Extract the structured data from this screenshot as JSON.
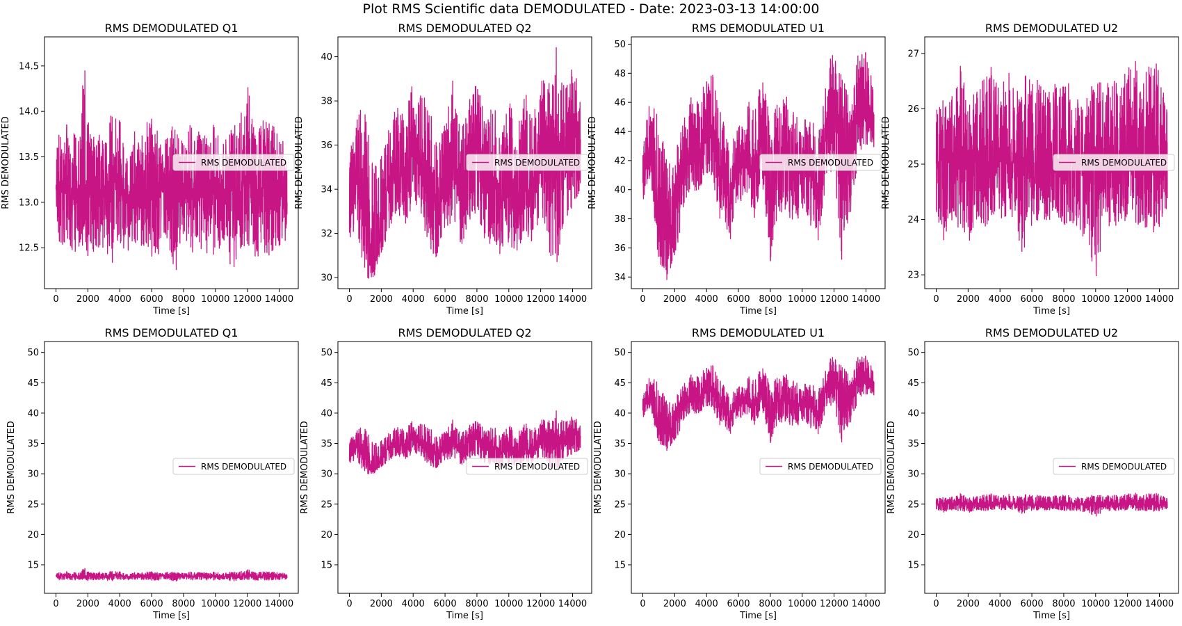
{
  "figure": {
    "suptitle": "Plot RMS Scientific data DEMODULATED - Date: 2023-03-13 14:00:00",
    "line_color": "#c71585"
  },
  "chart_data": [
    {
      "type": "line",
      "row": 0,
      "title": "RMS DEMODULATED Q1",
      "xlabel": "Time [s]",
      "ylabel": "RMS DEMODULATED",
      "legend": "RMS DEMODULATED",
      "legend_loc": "center-right",
      "xlim": [
        -720,
        15200
      ],
      "ylim": [
        12.05,
        14.82
      ],
      "xticks": [
        0,
        2000,
        4000,
        6000,
        8000,
        10000,
        12000,
        14000
      ],
      "yticks": [
        12.5,
        13.0,
        13.5,
        14.0,
        14.5
      ],
      "ytick_labels": [
        "12.5",
        "13.0",
        "13.5",
        "14.0",
        "14.5"
      ],
      "x": [
        0,
        500,
        1000,
        1500,
        1800,
        2000,
        2500,
        3000,
        3500,
        4000,
        4500,
        5000,
        5500,
        6000,
        6500,
        7000,
        7500,
        8000,
        8500,
        9000,
        9500,
        10000,
        10500,
        11000,
        11500,
        12000,
        12500,
        13000,
        13500,
        14000,
        14500
      ],
      "y": [
        13.1,
        13.2,
        13.0,
        13.2,
        13.3,
        13.1,
        13.2,
        13.1,
        13.3,
        13.2,
        13.1,
        13.2,
        13.1,
        13.2,
        13.1,
        13.2,
        13.0,
        13.2,
        13.1,
        13.1,
        13.2,
        13.1,
        13.0,
        13.2,
        13.1,
        13.2,
        13.1,
        13.1,
        13.2,
        13.1,
        13.0
      ],
      "y_min_band": [
        12.6,
        12.5,
        12.4,
        12.5,
        12.5,
        12.4,
        12.4,
        12.5,
        12.3,
        12.5,
        12.4,
        12.5,
        12.5,
        12.4,
        12.4,
        12.5,
        12.2,
        12.5,
        12.4,
        12.5,
        12.4,
        12.4,
        12.5,
        12.2,
        12.4,
        12.5,
        12.4,
        12.4,
        12.4,
        12.5,
        12.6
      ],
      "y_max_band": [
        13.6,
        14.0,
        13.8,
        13.7,
        14.7,
        13.9,
        13.7,
        13.8,
        14.0,
        13.9,
        13.8,
        13.9,
        13.8,
        14.0,
        13.7,
        13.8,
        13.9,
        13.7,
        13.9,
        13.8,
        13.8,
        13.9,
        13.7,
        13.8,
        14.0,
        14.3,
        13.9,
        13.9,
        13.9,
        13.8,
        13.6
      ]
    },
    {
      "type": "line",
      "row": 0,
      "title": "RMS DEMODULATED Q2",
      "xlabel": "Time [s]",
      "ylabel": "RMS DEMODULATED",
      "legend": "RMS DEMODULATED",
      "legend_loc": "center-right",
      "xlim": [
        -720,
        15200
      ],
      "ylim": [
        29.5,
        40.9
      ],
      "xticks": [
        0,
        2000,
        4000,
        6000,
        8000,
        10000,
        12000,
        14000
      ],
      "yticks": [
        30,
        32,
        34,
        36,
        38,
        40
      ],
      "ytick_labels": [
        "30",
        "32",
        "34",
        "36",
        "38",
        "40"
      ],
      "x": [
        0,
        500,
        1000,
        1500,
        2000,
        2500,
        3000,
        3500,
        4000,
        4500,
        5000,
        5500,
        6000,
        6500,
        7000,
        7500,
        8000,
        8500,
        9000,
        9500,
        10000,
        10500,
        11000,
        11500,
        12000,
        12500,
        13000,
        13500,
        14000,
        14500
      ],
      "y": [
        33.5,
        35.0,
        32.5,
        31.0,
        32.5,
        34.5,
        35.0,
        34.5,
        36.0,
        35.0,
        34.5,
        33.0,
        34.0,
        35.5,
        33.5,
        35.5,
        36.0,
        34.0,
        34.5,
        33.5,
        34.0,
        33.5,
        35.0,
        33.5,
        36.0,
        36.5,
        34.5,
        35.5,
        36.5,
        36.0
      ],
      "y_min_band": [
        31.5,
        32.0,
        30.0,
        29.8,
        31.0,
        32.0,
        33.0,
        32.0,
        33.5,
        32.5,
        31.5,
        30.5,
        32.0,
        32.5,
        31.0,
        32.5,
        33.0,
        31.5,
        31.5,
        31.0,
        31.5,
        31.0,
        32.0,
        31.5,
        33.0,
        31.0,
        30.5,
        32.5,
        33.0,
        34.0
      ],
      "y_max_band": [
        35.5,
        37.5,
        38.0,
        35.0,
        35.5,
        37.0,
        38.0,
        37.5,
        39.0,
        38.5,
        38.0,
        36.0,
        37.0,
        39.0,
        37.0,
        38.0,
        39.0,
        37.5,
        38.0,
        37.0,
        38.5,
        36.5,
        38.5,
        37.5,
        39.0,
        39.0,
        40.5,
        38.5,
        40.0,
        38.0
      ]
    },
    {
      "type": "line",
      "row": 0,
      "title": "RMS DEMODULATED U1",
      "xlabel": "Time [s]",
      "ylabel": "RMS DEMODULATED",
      "legend": "RMS DEMODULATED",
      "legend_loc": "center-right",
      "xlim": [
        -720,
        15200
      ],
      "ylim": [
        33.2,
        50.5
      ],
      "xticks": [
        0,
        2000,
        4000,
        6000,
        8000,
        10000,
        12000,
        14000
      ],
      "yticks": [
        34,
        36,
        38,
        40,
        42,
        44,
        46,
        48,
        50
      ],
      "ytick_labels": [
        "34",
        "36",
        "38",
        "40",
        "42",
        "44",
        "46",
        "48",
        "50"
      ],
      "x": [
        0,
        500,
        1000,
        1500,
        2000,
        2500,
        3000,
        3500,
        4000,
        4500,
        5000,
        5500,
        6000,
        6500,
        7000,
        7500,
        8000,
        8500,
        9000,
        9500,
        10000,
        10500,
        11000,
        11500,
        12000,
        12500,
        13000,
        13500,
        14000,
        14500
      ],
      "y": [
        41.0,
        43.0,
        39.0,
        36.5,
        38.0,
        41.0,
        43.0,
        42.0,
        44.0,
        43.0,
        41.0,
        39.0,
        42.0,
        42.5,
        41.0,
        44.0,
        40.0,
        42.0,
        42.0,
        41.0,
        42.0,
        41.0,
        40.0,
        44.0,
        45.0,
        43.0,
        41.0,
        45.0,
        46.0,
        44.0
      ],
      "y_min_band": [
        39.0,
        40.0,
        35.0,
        33.5,
        35.0,
        38.0,
        40.0,
        39.0,
        41.0,
        40.0,
        37.0,
        36.5,
        39.0,
        39.5,
        38.0,
        40.0,
        35.0,
        38.5,
        38.0,
        37.5,
        38.5,
        37.5,
        36.5,
        40.5,
        41.5,
        34.5,
        37.5,
        42.0,
        43.0,
        42.5
      ],
      "y_max_band": [
        43.5,
        46.5,
        45.0,
        42.0,
        42.5,
        44.5,
        46.5,
        46.0,
        48.5,
        48.5,
        45.5,
        43.0,
        45.0,
        46.5,
        45.5,
        48.0,
        45.0,
        46.0,
        46.5,
        45.5,
        46.0,
        45.0,
        44.0,
        48.5,
        49.5,
        49.5,
        46.0,
        49.5,
        49.5,
        47.5
      ]
    },
    {
      "type": "line",
      "row": 0,
      "title": "RMS DEMODULATED U2",
      "xlabel": "Time [s]",
      "ylabel": "RMS DEMODULATED",
      "legend": "RMS DEMODULATED",
      "legend_loc": "center-right",
      "xlim": [
        -720,
        15200
      ],
      "ylim": [
        22.75,
        27.3
      ],
      "xticks": [
        0,
        2000,
        4000,
        6000,
        8000,
        10000,
        12000,
        14000
      ],
      "yticks": [
        23,
        24,
        25,
        26,
        27
      ],
      "ytick_labels": [
        "23",
        "24",
        "25",
        "26",
        "27"
      ],
      "x": [
        0,
        500,
        1000,
        1500,
        2000,
        2500,
        3000,
        3500,
        4000,
        4500,
        5000,
        5500,
        6000,
        6500,
        7000,
        7500,
        8000,
        8500,
        9000,
        9500,
        10000,
        10500,
        11000,
        11500,
        12000,
        12500,
        13000,
        13500,
        14000,
        14500
      ],
      "y": [
        25.0,
        25.1,
        25.0,
        25.2,
        25.0,
        25.1,
        25.0,
        24.9,
        25.1,
        25.0,
        25.1,
        25.0,
        24.9,
        25.1,
        25.0,
        25.1,
        25.0,
        25.1,
        25.0,
        25.0,
        25.1,
        25.0,
        24.9,
        25.1,
        25.0,
        25.1,
        25.0,
        25.1,
        25.0,
        25.0
      ],
      "y_min_band": [
        23.9,
        23.6,
        24.0,
        23.8,
        23.5,
        24.0,
        23.8,
        24.0,
        23.8,
        24.1,
        23.9,
        23.2,
        23.9,
        24.0,
        23.8,
        24.1,
        23.9,
        23.9,
        23.8,
        23.5,
        22.9,
        23.8,
        23.9,
        23.8,
        24.0,
        23.8,
        23.9,
        23.7,
        23.6,
        24.0
      ],
      "y_max_band": [
        26.0,
        26.2,
        26.5,
        26.8,
        26.4,
        26.7,
        26.6,
        26.8,
        26.5,
        26.7,
        26.4,
        26.7,
        26.5,
        26.6,
        26.3,
        26.5,
        26.6,
        26.4,
        26.5,
        26.2,
        26.6,
        26.5,
        26.6,
        26.4,
        26.8,
        27.0,
        26.6,
        26.9,
        26.8,
        26.3
      ]
    },
    {
      "type": "line",
      "row": 1,
      "title": "RMS DEMODULATED Q1",
      "xlabel": "Time [s]",
      "ylabel": "RMS DEMODULATED",
      "legend": "RMS DEMODULATED",
      "legend_loc": "center-right",
      "xlim": [
        -720,
        15200
      ],
      "ylim": [
        10.3,
        51.8
      ],
      "xticks": [
        0,
        2000,
        4000,
        6000,
        8000,
        10000,
        12000,
        14000
      ],
      "yticks": [
        15,
        20,
        25,
        30,
        35,
        40,
        45,
        50
      ],
      "ytick_labels": [
        "15",
        "20",
        "25",
        "30",
        "35",
        "40",
        "45",
        "50"
      ],
      "series_ref": 0
    },
    {
      "type": "line",
      "row": 1,
      "title": "RMS DEMODULATED Q2",
      "xlabel": "Time [s]",
      "ylabel": "RMS DEMODULATED",
      "legend": "RMS DEMODULATED",
      "legend_loc": "lower-right",
      "xlim": [
        -720,
        15200
      ],
      "ylim": [
        10.3,
        51.8
      ],
      "xticks": [
        0,
        2000,
        4000,
        6000,
        8000,
        10000,
        12000,
        14000
      ],
      "yticks": [
        15,
        20,
        25,
        30,
        35,
        40,
        45,
        50
      ],
      "ytick_labels": [
        "15",
        "20",
        "25",
        "30",
        "35",
        "40",
        "45",
        "50"
      ],
      "series_ref": 1
    },
    {
      "type": "line",
      "row": 1,
      "title": "RMS DEMODULATED U1",
      "xlabel": "Time [s]",
      "ylabel": "RMS DEMODULATED",
      "legend": "RMS DEMODULATED",
      "legend_loc": "center-right",
      "xlim": [
        -720,
        15200
      ],
      "ylim": [
        10.3,
        51.8
      ],
      "xticks": [
        0,
        2000,
        4000,
        6000,
        8000,
        10000,
        12000,
        14000
      ],
      "yticks": [
        15,
        20,
        25,
        30,
        35,
        40,
        45,
        50
      ],
      "ytick_labels": [
        "15",
        "20",
        "25",
        "30",
        "35",
        "40",
        "45",
        "50"
      ],
      "series_ref": 2
    },
    {
      "type": "line",
      "row": 1,
      "title": "RMS DEMODULATED U2",
      "xlabel": "Time [s]",
      "ylabel": "RMS DEMODULATED",
      "legend": "RMS DEMODULATED",
      "legend_loc": "center-right",
      "xlim": [
        -720,
        15200
      ],
      "ylim": [
        10.3,
        51.8
      ],
      "xticks": [
        0,
        2000,
        4000,
        6000,
        8000,
        10000,
        12000,
        14000
      ],
      "yticks": [
        15,
        20,
        25,
        30,
        35,
        40,
        45,
        50
      ],
      "ytick_labels": [
        "15",
        "20",
        "25",
        "30",
        "35",
        "40",
        "45",
        "50"
      ],
      "series_ref": 3
    }
  ]
}
